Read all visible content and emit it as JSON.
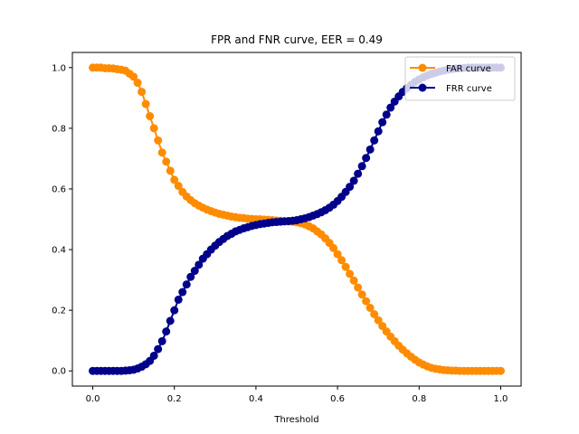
{
  "chart_data": {
    "type": "line",
    "title": "FPR and FNR curve, EER = 0.49",
    "xlabel": "Threshold",
    "ylabel": "",
    "xlim": [
      -0.05,
      1.05
    ],
    "ylim": [
      -0.05,
      1.05
    ],
    "xticks": [
      0.0,
      0.2,
      0.4,
      0.6,
      0.8,
      1.0
    ],
    "xtick_labels": [
      "0.0",
      "0.2",
      "0.4",
      "0.6",
      "0.8",
      "1.0"
    ],
    "yticks": [
      0.0,
      0.2,
      0.4,
      0.6,
      0.8,
      1.0
    ],
    "ytick_labels": [
      "0.0",
      "0.2",
      "0.4",
      "0.6",
      "0.8",
      "1.0"
    ],
    "grid": false,
    "legend_position": "top-right",
    "x": [
      0.0,
      0.01,
      0.02,
      0.03,
      0.04,
      0.05,
      0.06,
      0.07,
      0.08,
      0.09,
      0.1,
      0.11,
      0.12,
      0.13,
      0.14,
      0.15,
      0.16,
      0.17,
      0.18,
      0.19,
      0.2,
      0.21,
      0.22,
      0.23,
      0.24,
      0.25,
      0.26,
      0.27,
      0.28,
      0.29,
      0.3,
      0.31,
      0.32,
      0.33,
      0.34,
      0.35,
      0.36,
      0.37,
      0.38,
      0.39,
      0.4,
      0.41,
      0.42,
      0.43,
      0.44,
      0.45,
      0.46,
      0.47,
      0.48,
      0.49,
      0.5,
      0.51,
      0.52,
      0.53,
      0.54,
      0.55,
      0.56,
      0.57,
      0.58,
      0.59,
      0.6,
      0.61,
      0.62,
      0.63,
      0.64,
      0.65,
      0.66,
      0.67,
      0.68,
      0.69,
      0.7,
      0.71,
      0.72,
      0.73,
      0.74,
      0.75,
      0.76,
      0.77,
      0.78,
      0.79,
      0.8,
      0.81,
      0.82,
      0.83,
      0.84,
      0.85,
      0.86,
      0.87,
      0.88,
      0.89,
      0.9,
      0.91,
      0.92,
      0.93,
      0.94,
      0.95,
      0.96,
      0.97,
      0.98,
      0.99,
      1.0
    ],
    "series": [
      {
        "name": "FAR curve",
        "color": "#ff8c00",
        "values": [
          1.0,
          1.0,
          1.0,
          0.998,
          0.998,
          0.997,
          0.995,
          0.993,
          0.99,
          0.98,
          0.97,
          0.95,
          0.92,
          0.88,
          0.84,
          0.8,
          0.76,
          0.72,
          0.69,
          0.66,
          0.63,
          0.61,
          0.59,
          0.575,
          0.563,
          0.553,
          0.545,
          0.538,
          0.532,
          0.527,
          0.522,
          0.518,
          0.515,
          0.512,
          0.509,
          0.507,
          0.505,
          0.504,
          0.502,
          0.501,
          0.5,
          0.5,
          0.499,
          0.498,
          0.497,
          0.496,
          0.495,
          0.494,
          0.493,
          0.492,
          0.49,
          0.487,
          0.483,
          0.477,
          0.47,
          0.46,
          0.45,
          0.437,
          0.422,
          0.405,
          0.385,
          0.365,
          0.343,
          0.32,
          0.298,
          0.275,
          0.252,
          0.23,
          0.208,
          0.187,
          0.167,
          0.148,
          0.13,
          0.113,
          0.098,
          0.083,
          0.07,
          0.058,
          0.047,
          0.037,
          0.028,
          0.021,
          0.015,
          0.01,
          0.007,
          0.005,
          0.003,
          0.002,
          0.001,
          0.001,
          0.0,
          0.0,
          0.0,
          0.0,
          0.0,
          0.0,
          0.0,
          0.0,
          0.0,
          0.0,
          0.0
        ]
      },
      {
        "name": "FRR curve",
        "color": "#00008b",
        "values": [
          0.0,
          0.0,
          0.0,
          0.0,
          0.0,
          0.0,
          0.0,
          0.0,
          0.001,
          0.002,
          0.004,
          0.008,
          0.014,
          0.022,
          0.033,
          0.05,
          0.072,
          0.098,
          0.13,
          0.165,
          0.2,
          0.235,
          0.26,
          0.285,
          0.31,
          0.33,
          0.35,
          0.37,
          0.385,
          0.4,
          0.413,
          0.425,
          0.435,
          0.445,
          0.452,
          0.46,
          0.465,
          0.47,
          0.474,
          0.478,
          0.481,
          0.484,
          0.486,
          0.488,
          0.49,
          0.491,
          0.492,
          0.493,
          0.494,
          0.495,
          0.497,
          0.5,
          0.503,
          0.507,
          0.512,
          0.517,
          0.523,
          0.53,
          0.538,
          0.548,
          0.56,
          0.574,
          0.59,
          0.607,
          0.627,
          0.65,
          0.675,
          0.702,
          0.73,
          0.76,
          0.79,
          0.82,
          0.845,
          0.868,
          0.888,
          0.905,
          0.92,
          0.932,
          0.943,
          0.953,
          0.961,
          0.968,
          0.974,
          0.979,
          0.983,
          0.987,
          0.99,
          0.993,
          0.995,
          0.997,
          0.998,
          0.999,
          1.0,
          1.0,
          1.0,
          1.0,
          1.0,
          1.0,
          1.0,
          1.0,
          1.0
        ]
      }
    ]
  }
}
